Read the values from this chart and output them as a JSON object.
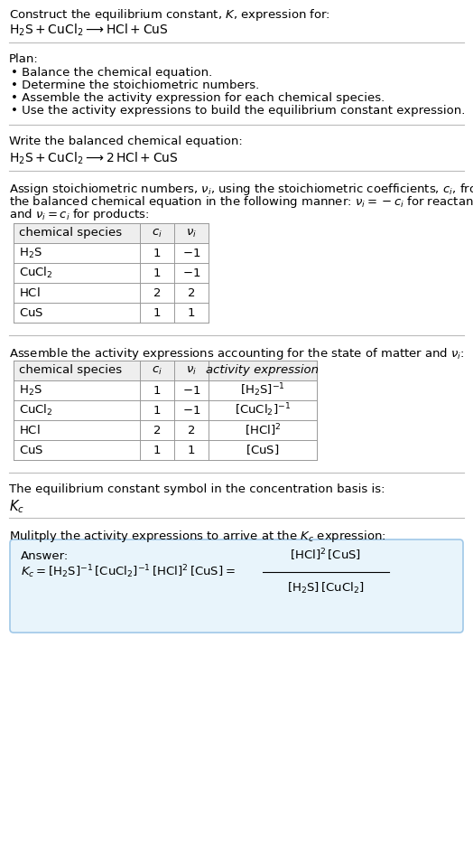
{
  "title_line1": "Construct the equilibrium constant, $K$, expression for:",
  "title_line2": "$\\mathrm{H_2S + CuCl_2 \\longrightarrow HCl + CuS}$",
  "plan_header": "Plan:",
  "plan_items": [
    "• Balance the chemical equation.",
    "• Determine the stoichiometric numbers.",
    "• Assemble the activity expression for each chemical species.",
    "• Use the activity expressions to build the equilibrium constant expression."
  ],
  "balanced_header": "Write the balanced chemical equation:",
  "balanced_eq": "$\\mathrm{H_2S + CuCl_2 \\longrightarrow 2\\,HCl + CuS}$",
  "stoich_intro_lines": [
    "Assign stoichiometric numbers, $\\nu_i$, using the stoichiometric coefficients, $c_i$, from",
    "the balanced chemical equation in the following manner: $\\nu_i = -c_i$ for reactants",
    "and $\\nu_i = c_i$ for products:"
  ],
  "table1_headers": [
    "chemical species",
    "$c_i$",
    "$\\nu_i$"
  ],
  "table1_rows": [
    [
      "$\\mathrm{H_2S}$",
      "1",
      "$-1$"
    ],
    [
      "$\\mathrm{CuCl_2}$",
      "1",
      "$-1$"
    ],
    [
      "$\\mathrm{HCl}$",
      "2",
      "2"
    ],
    [
      "$\\mathrm{CuS}$",
      "1",
      "1"
    ]
  ],
  "activity_intro": "Assemble the activity expressions accounting for the state of matter and $\\nu_i$:",
  "table2_headers": [
    "chemical species",
    "$c_i$",
    "$\\nu_i$",
    "activity expression"
  ],
  "table2_rows": [
    [
      "$\\mathrm{H_2S}$",
      "1",
      "$-1$",
      "$[\\mathrm{H_2S}]^{-1}$"
    ],
    [
      "$\\mathrm{CuCl_2}$",
      "1",
      "$-1$",
      "$[\\mathrm{CuCl_2}]^{-1}$"
    ],
    [
      "$\\mathrm{HCl}$",
      "2",
      "2",
      "$[\\mathrm{HCl}]^{2}$"
    ],
    [
      "$\\mathrm{CuS}$",
      "1",
      "1",
      "$[\\mathrm{CuS}]$"
    ]
  ],
  "kc_symbol_text": "The equilibrium constant symbol in the concentration basis is:",
  "kc_symbol": "$K_c$",
  "multiply_text": "Mulitply the activity expressions to arrive at the $K_c$ expression:",
  "answer_label": "Answer:",
  "answer_eq_left": "$K_c = [\\mathrm{H_2S}]^{-1}\\,[\\mathrm{CuCl_2}]^{-1}\\,[\\mathrm{HCl}]^{2}\\,[\\mathrm{CuS}] = $",
  "answer_frac_num": "$[\\mathrm{HCl}]^2\\,[\\mathrm{CuS}]$",
  "answer_frac_den": "$[\\mathrm{H_2S}]\\,[\\mathrm{CuCl_2}]$",
  "bg_color": "#ffffff",
  "answer_box_bg": "#e8f4fb",
  "answer_box_border": "#a0c8e8",
  "divider_color": "#bbbbbb",
  "text_color": "#000000",
  "font_size": 9.5
}
